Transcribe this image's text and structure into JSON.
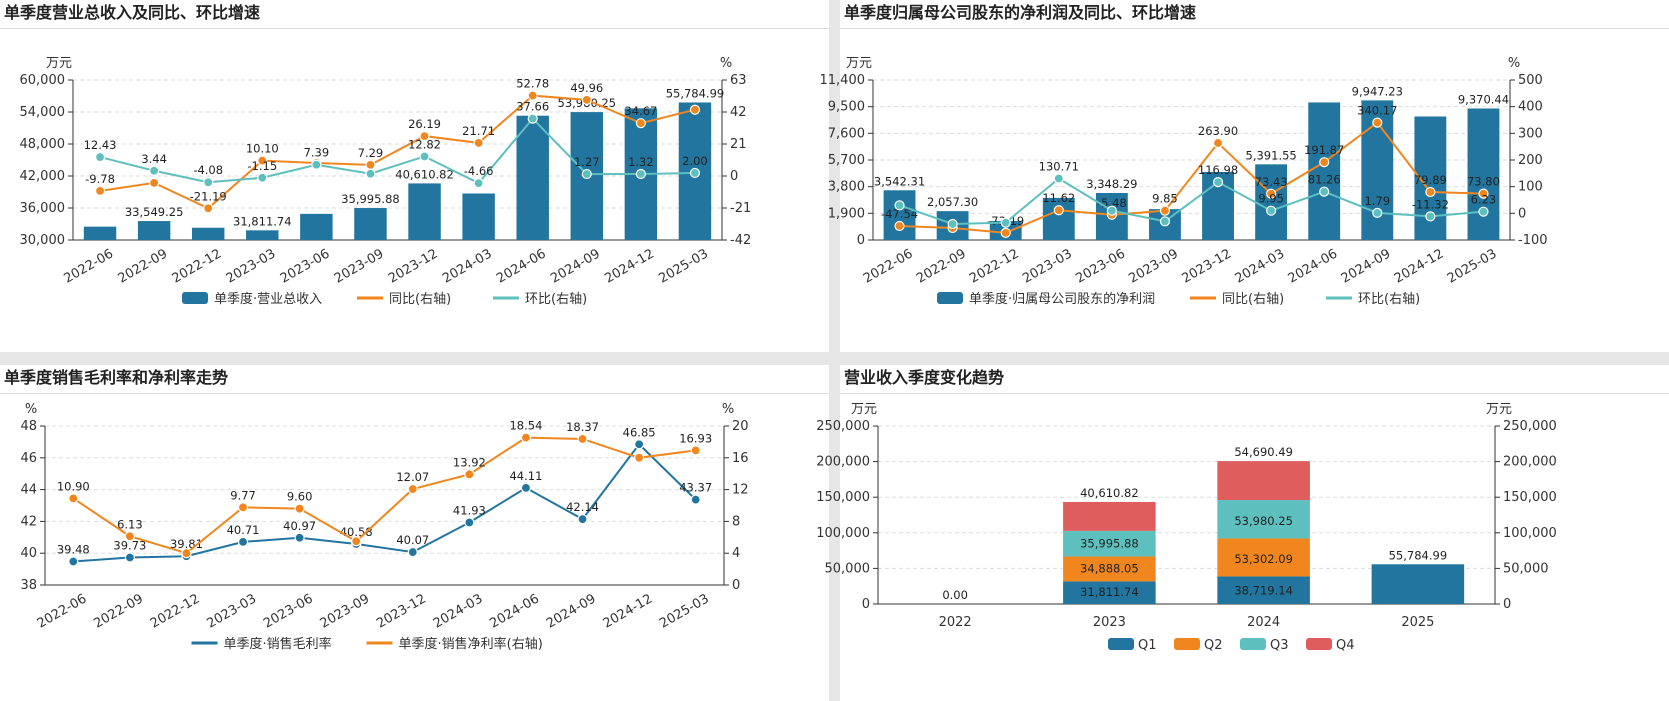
{
  "colors": {
    "bar": "#21759f",
    "orange": "#f0861d",
    "teal": "#5ebfbf",
    "q1": "#21759f",
    "q2": "#f0861d",
    "q3": "#5ebfbf",
    "q4": "#df5d5d",
    "grid": "#dddddd",
    "axis": "#333333"
  },
  "panels": {
    "p1": {
      "title": "单季度营业总收入及同比、环比增速"
    },
    "p2": {
      "title": "单季度归属母公司股东的净利润及同比、环比增速"
    },
    "p3": {
      "title": "单季度销售毛利率和净利率走势"
    },
    "p4": {
      "title": "营业收入季度变化趋势"
    }
  },
  "chart_data": [
    {
      "id": "revenue",
      "type": "bar+line",
      "title": "单季度营业总收入及同比、环比增速",
      "categories": [
        "2022-06",
        "2022-09",
        "2022-12",
        "2023-03",
        "2023-06",
        "2023-09",
        "2023-12",
        "2024-03",
        "2024-06",
        "2024-09",
        "2024-12",
        "2025-03"
      ],
      "left_unit": "万元",
      "right_unit": "%",
      "ylim_left": [
        30000,
        60000
      ],
      "yticks_left": [
        "30,000",
        "36,000",
        "42,000",
        "48,000",
        "54,000",
        "60,000"
      ],
      "ylim_right": [
        -42,
        63
      ],
      "yticks_right": [
        "-42",
        "-21",
        "0",
        "21",
        "42",
        "63"
      ],
      "bar_series": {
        "name": "单季度·营业总收入",
        "values": [
          32500,
          33549.25,
          32300,
          31811.74,
          34900,
          35995.88,
          40610.82,
          38719.14,
          53302.09,
          53980.25,
          54690.49,
          55784.99
        ],
        "labels": [
          "",
          "33,549.25",
          "",
          "31,811.74",
          "",
          "35,995.88",
          "40,610.82",
          "",
          "",
          "53,980.25",
          "",
          "55,784.99"
        ]
      },
      "line_series": [
        {
          "name": "同比(右轴)",
          "color_key": "orange",
          "values": [
            -9.78,
            -4.5,
            -21.19,
            10.1,
            8.5,
            7.29,
            26.19,
            21.71,
            52.78,
            49.96,
            34.67,
            43.5
          ],
          "labels": [
            "-9.78",
            "",
            "-21.19",
            "10.10",
            "",
            "7.29",
            "26.19",
            "21.71",
            "52.78",
            "49.96",
            "34.67",
            ""
          ]
        },
        {
          "name": "环比(右轴)",
          "color_key": "teal",
          "values": [
            12.43,
            3.44,
            -4.08,
            -1.15,
            7.39,
            1.5,
            12.82,
            -4.66,
            37.66,
            1.27,
            1.32,
            2.0
          ],
          "labels": [
            "12.43",
            "3.44",
            "-4.08",
            "-1.15",
            "7.39",
            "",
            "12.82",
            "-4.66",
            "37.66",
            "1.27",
            "1.32",
            "2.00"
          ]
        }
      ],
      "legend": [
        "单季度·营业总收入",
        "同比(右轴)",
        "环比(右轴)"
      ]
    },
    {
      "id": "net_profit",
      "type": "bar+line",
      "title": "单季度归属母公司股东的净利润及同比、环比增速",
      "categories": [
        "2022-06",
        "2022-09",
        "2022-12",
        "2023-03",
        "2023-06",
        "2023-09",
        "2023-12",
        "2024-03",
        "2024-06",
        "2024-09",
        "2024-12",
        "2025-03"
      ],
      "left_unit": "万元",
      "right_unit": "%",
      "ylim_left": [
        0,
        11400
      ],
      "yticks_left": [
        "0",
        "1,900",
        "3,800",
        "5,700",
        "7,600",
        "9,500",
        "11,400"
      ],
      "ylim_right": [
        -100,
        500
      ],
      "yticks_right": [
        "-100",
        "0",
        "100",
        "200",
        "300",
        "400",
        "500"
      ],
      "bar_series": {
        "name": "单季度·归属母公司股东的净利润",
        "values": [
          3542.31,
          2057.3,
          1350,
          3000,
          3348.29,
          2200,
          4850,
          5391.55,
          9800,
          9947.23,
          8800,
          9370.44
        ],
        "labels": [
          "3,542.31",
          "2,057.30",
          "",
          "",
          "3,348.29",
          "",
          "",
          "5,391.55",
          "",
          "9,947.23",
          "",
          "9,370.44"
        ]
      },
      "line_series": [
        {
          "name": "同比(右轴)",
          "color_key": "orange",
          "values": [
            -47.54,
            -55,
            -73.19,
            11.62,
            -5.48,
            9.85,
            263.9,
            73.43,
            191.87,
            340.17,
            79.89,
            73.8
          ],
          "labels": [
            "-47.54",
            "",
            "-73.19",
            "11.62",
            "-5.48",
            "9.85",
            "263.90",
            "73.43",
            "191.87",
            "340.17",
            "79.89",
            "73.80"
          ]
        },
        {
          "name": "环比(右轴)",
          "color_key": "teal",
          "values": [
            30,
            -40,
            -35,
            130.71,
            10,
            -30,
            116.98,
            9.95,
            81.26,
            1.79,
            -11.32,
            6.23
          ],
          "labels": [
            "",
            "",
            "",
            "130.71",
            "",
            "",
            "116.98",
            "9.95",
            "81.26",
            "1.79",
            "-11.32",
            "6.23"
          ]
        }
      ],
      "legend": [
        "单季度·归属母公司股东的净利润",
        "同比(右轴)",
        "环比(右轴)"
      ]
    },
    {
      "id": "margins",
      "type": "line",
      "title": "单季度销售毛利率和净利率走势",
      "categories": [
        "2022-06",
        "2022-09",
        "2022-12",
        "2023-03",
        "2023-06",
        "2023-09",
        "2023-12",
        "2024-03",
        "2024-06",
        "2024-09",
        "2024-12",
        "2025-03"
      ],
      "left_unit": "%",
      "right_unit": "%",
      "ylim_left": [
        38,
        48
      ],
      "yticks_left": [
        "38",
        "40",
        "42",
        "44",
        "46",
        "48"
      ],
      "ylim_right": [
        0,
        20
      ],
      "yticks_right": [
        "0",
        "4",
        "8",
        "12",
        "16",
        "20"
      ],
      "series": [
        {
          "name": "单季度·销售毛利率",
          "axis": "left",
          "color_key": "bar",
          "values": [
            39.48,
            39.73,
            39.81,
            40.71,
            40.97,
            40.58,
            40.07,
            41.93,
            44.11,
            42.14,
            46.85,
            43.37
          ],
          "labels": [
            "39.48",
            "39.73",
            "39.81",
            "40.71",
            "40.97",
            "40.58",
            "40.07",
            "41.93",
            "44.11",
            "42.14",
            "46.85",
            "43.37"
          ]
        },
        {
          "name": "单季度·销售净利率(右轴)",
          "axis": "right",
          "color_key": "orange",
          "values": [
            10.9,
            6.13,
            4.0,
            9.77,
            9.6,
            5.5,
            12.07,
            13.92,
            18.54,
            18.37,
            16.0,
            16.93
          ],
          "labels": [
            "10.90",
            "6.13",
            "",
            "9.77",
            "9.60",
            "",
            "12.07",
            "13.92",
            "18.54",
            "18.37",
            "",
            "16.93"
          ]
        }
      ],
      "legend": [
        "单季度·销售毛利率",
        "单季度·销售净利率(右轴)"
      ]
    },
    {
      "id": "quarterly_stack",
      "type": "stacked-bar",
      "title": "营业收入季度变化趋势",
      "categories": [
        "2022",
        "2023",
        "2024",
        "2025"
      ],
      "left_unit": "万元",
      "right_unit": "万元",
      "ylim": [
        0,
        250000
      ],
      "yticks": [
        "0",
        "50,000",
        "100,000",
        "150,000",
        "200,000",
        "250,000"
      ],
      "series": [
        {
          "name": "Q1",
          "color_key": "q1",
          "values": [
            0,
            31811.74,
            38719.14,
            55784.99
          ],
          "labels": [
            "0.00",
            "31,811.74",
            "38,719.14",
            "55,784.99"
          ]
        },
        {
          "name": "Q2",
          "color_key": "q2",
          "values": [
            0,
            34888.05,
            53302.09,
            0
          ],
          "labels": [
            "",
            "34,888.05",
            "53,302.09",
            ""
          ]
        },
        {
          "name": "Q3",
          "color_key": "q3",
          "values": [
            0,
            35995.88,
            53980.25,
            0
          ],
          "labels": [
            "",
            "35,995.88",
            "53,980.25",
            ""
          ]
        },
        {
          "name": "Q4",
          "color_key": "q4",
          "values": [
            0,
            40610.82,
            54690.49,
            0
          ],
          "labels": [
            "",
            "40,610.82",
            "54,690.49",
            ""
          ]
        }
      ],
      "legend": [
        "Q1",
        "Q2",
        "Q3",
        "Q4"
      ]
    }
  ]
}
